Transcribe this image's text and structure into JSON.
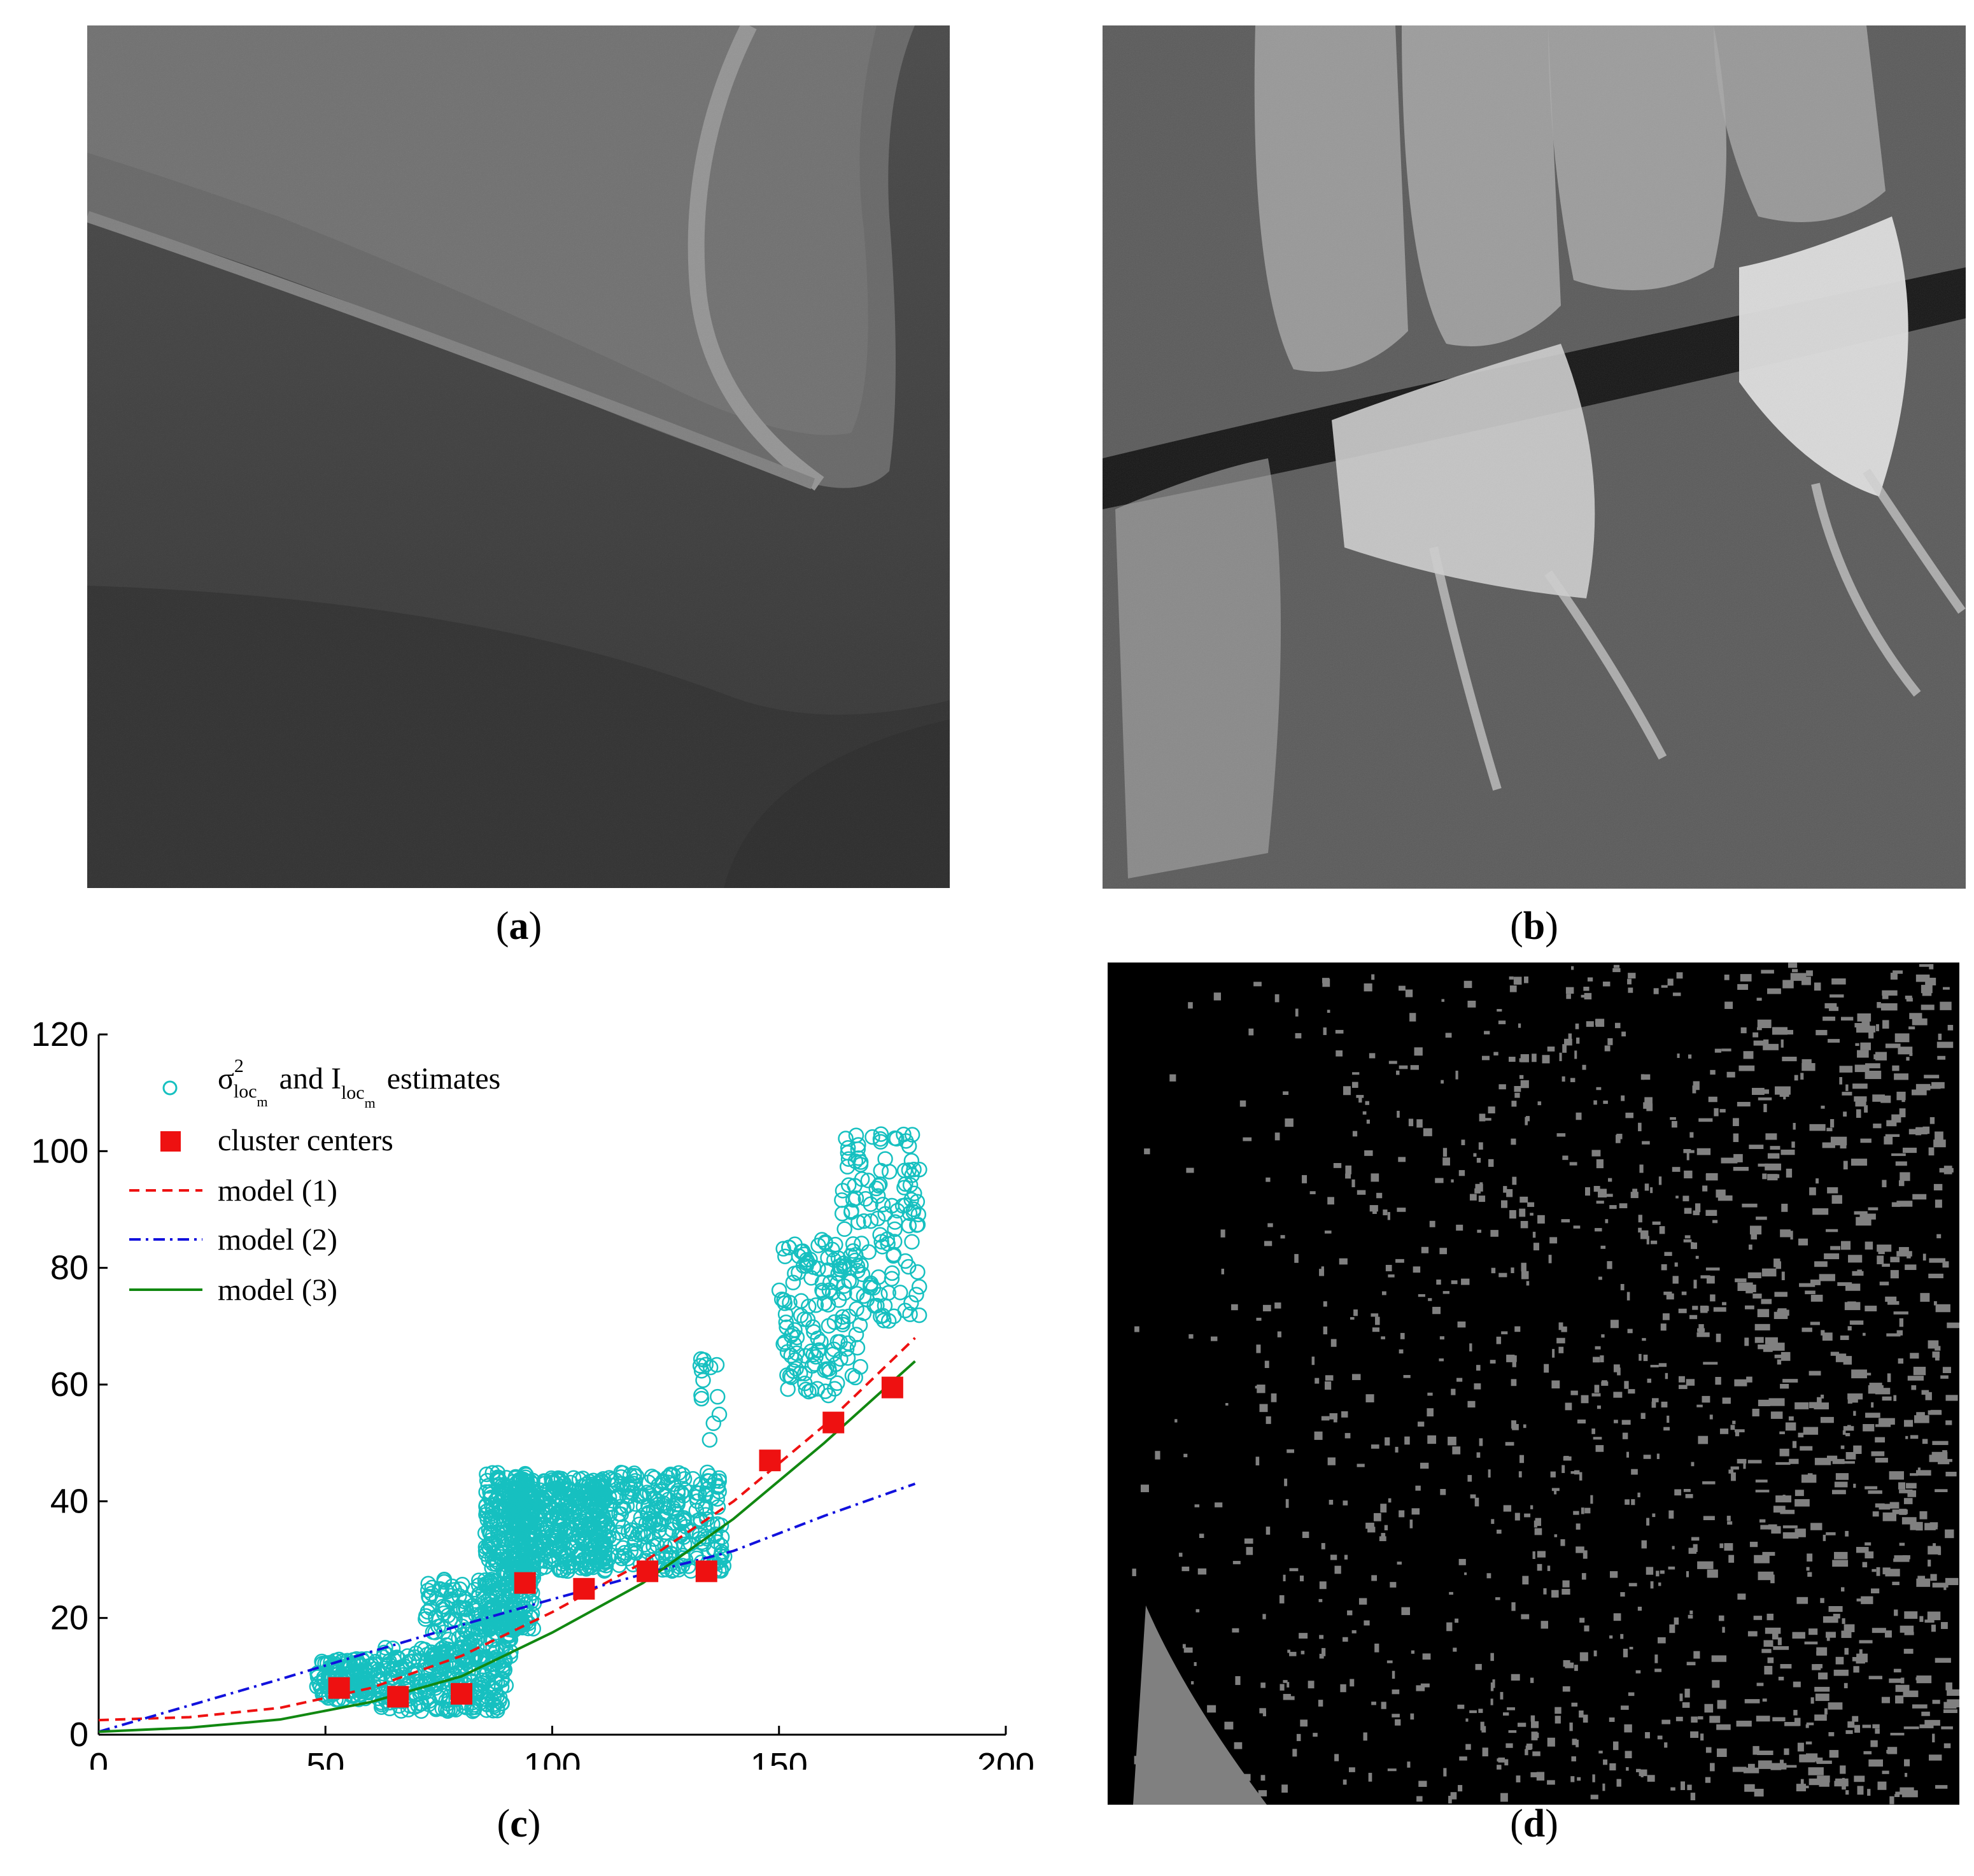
{
  "figure": {
    "panels": [
      {
        "id": "a",
        "label": "a",
        "kind": "x-ray image"
      },
      {
        "id": "b",
        "label": "b",
        "kind": "x-ray image"
      },
      {
        "id": "c",
        "label": "c",
        "kind": "chart"
      },
      {
        "id": "d",
        "label": "d",
        "kind": "binary map"
      }
    ]
  },
  "chart_data": {
    "type": "scatter",
    "xlim": [
      0,
      200
    ],
    "ylim": [
      0,
      120
    ],
    "xticks": [
      0,
      50,
      100,
      150,
      200
    ],
    "yticks": [
      0,
      20,
      40,
      60,
      80,
      100,
      120
    ],
    "grid": false,
    "legend_position": "top-left",
    "legend": [
      {
        "key": "scatter",
        "marker": "circle",
        "color": "#16c0c0",
        "label": "σ²locm and Ilocm estimates",
        "parts": {
          "sigma": "σ",
          "sup": "2",
          "sub1": "loc",
          "sub2": "m",
          "and": "and I",
          "sub3": "loc",
          "sub4": "m",
          "tail": "estimates"
        }
      },
      {
        "key": "centers",
        "marker": "square",
        "color": "#ee1111",
        "label": "cluster centers"
      },
      {
        "key": "m1",
        "line": "dashed",
        "color": "#ee1111",
        "label": "model (1)"
      },
      {
        "key": "m2",
        "line": "dashdot",
        "color": "#1111dd",
        "label": "model (2)"
      },
      {
        "key": "m3",
        "line": "solid",
        "color": "#118811",
        "label": "model (3)"
      }
    ],
    "scatter_clusters": [
      {
        "x_range": [
          48,
          62
        ],
        "y_range": [
          6,
          13
        ],
        "count": 140
      },
      {
        "x_range": [
          62,
          90
        ],
        "y_range": [
          4,
          15
        ],
        "count": 260
      },
      {
        "x_range": [
          72,
          92
        ],
        "y_range": [
          12,
          27
        ],
        "count": 160
      },
      {
        "x_range": [
          85,
          96
        ],
        "y_range": [
          18,
          45
        ],
        "count": 320
      },
      {
        "x_range": [
          90,
          112
        ],
        "y_range": [
          28,
          44
        ],
        "count": 420
      },
      {
        "x_range": [
          110,
          138
        ],
        "y_range": [
          28,
          45
        ],
        "count": 260
      },
      {
        "x_range": [
          132,
          137
        ],
        "y_range": [
          50,
          65
        ],
        "count": 14
      },
      {
        "x_range": [
          150,
          168
        ],
        "y_range": [
          58,
          85
        ],
        "count": 130
      },
      {
        "x_range": [
          163,
          181
        ],
        "y_range": [
          70,
          103
        ],
        "count": 130
      }
    ],
    "cluster_centers": [
      {
        "x": 53,
        "y": 8
      },
      {
        "x": 66,
        "y": 6.5
      },
      {
        "x": 80,
        "y": 7
      },
      {
        "x": 94,
        "y": 26
      },
      {
        "x": 107,
        "y": 25
      },
      {
        "x": 121,
        "y": 28
      },
      {
        "x": 134,
        "y": 28
      },
      {
        "x": 148,
        "y": 47
      },
      {
        "x": 162,
        "y": 53.5
      },
      {
        "x": 175,
        "y": 59.5
      }
    ],
    "series": [
      {
        "key": "m1",
        "x": [
          0,
          20,
          40,
          60,
          80,
          100,
          120,
          140,
          160,
          180
        ],
        "y": [
          2.5,
          3,
          4.6,
          8,
          13.5,
          21,
          29.5,
          40,
          53,
          68
        ]
      },
      {
        "key": "m2",
        "x": [
          0,
          20,
          40,
          60,
          80,
          100,
          120,
          140,
          160,
          180
        ],
        "y": [
          0.5,
          5,
          9.5,
          14.2,
          18.8,
          23.2,
          27.5,
          31.5,
          37.5,
          43
        ]
      },
      {
        "key": "m3",
        "x": [
          0,
          20,
          40,
          60,
          80,
          100,
          120,
          140,
          160,
          180
        ],
        "y": [
          0.5,
          1.2,
          2.6,
          5.6,
          10,
          17.5,
          26,
          37,
          50,
          64
        ]
      }
    ]
  }
}
